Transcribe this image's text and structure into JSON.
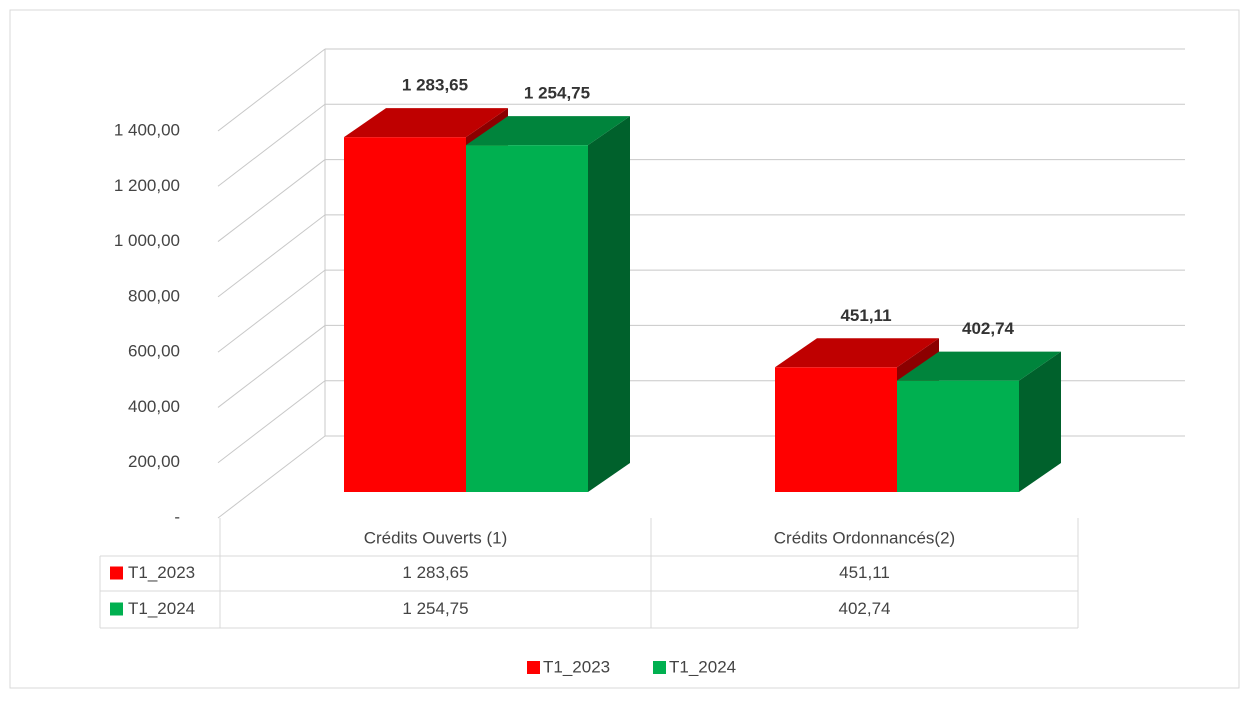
{
  "chart_data": {
    "type": "bar3d",
    "categories": [
      "Crédits Ouverts (1)",
      "Crédits Ordonnancés(2)"
    ],
    "series": [
      {
        "name": "T1_2023",
        "color": "#ff0000",
        "values": [
          1283.65,
          451.11
        ],
        "value_labels": [
          "1 283,65",
          "451,11"
        ]
      },
      {
        "name": "T1_2024",
        "color": "#00b050",
        "values": [
          1254.75,
          402.74
        ],
        "value_labels": [
          "1 254,75",
          "402,74"
        ]
      }
    ],
    "ylim": [
      0,
      1400
    ],
    "yticks": [
      {
        "value": 0,
        "label": "-"
      },
      {
        "value": 200,
        "label": "200,00"
      },
      {
        "value": 400,
        "label": "400,00"
      },
      {
        "value": 600,
        "label": "600,00"
      },
      {
        "value": 800,
        "label": "800,00"
      },
      {
        "value": 1000,
        "label": "1 000,00"
      },
      {
        "value": 1200,
        "label": "1 200,00"
      },
      {
        "value": 1400,
        "label": "1 400,00"
      }
    ],
    "grid": true,
    "legend": "bottom",
    "data_table": true
  }
}
